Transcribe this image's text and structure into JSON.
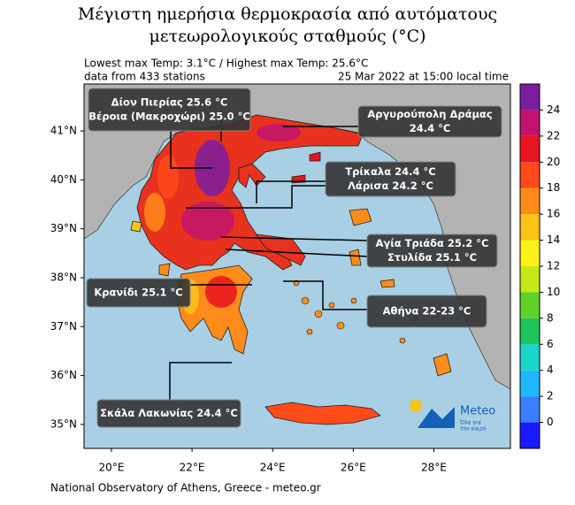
{
  "title": [
    "Μέγιστη ημερήσια θερμοκρασία από αυτόματους",
    "μετεωρολογικούς σταθμούς (°C)"
  ],
  "info": {
    "temps": "Lowest max Temp: 3.1°C / Highest max Temp: 25.6°C",
    "stations": "data from 433 stations",
    "time": "25 Mar 2022 at 15:00 local time"
  },
  "map": {
    "lonlim": [
      19.32,
      29.9
    ],
    "latlim": [
      34.51,
      41.96
    ],
    "lonticks": [
      {
        "value": 20,
        "label": "20°E"
      },
      {
        "value": 22,
        "label": "22°E"
      },
      {
        "value": 24,
        "label": "24°E"
      },
      {
        "value": 26,
        "label": "26°E"
      },
      {
        "value": 28,
        "label": "28°E"
      }
    ],
    "latticks": [
      {
        "value": 35,
        "label": "35°N"
      },
      {
        "value": 36,
        "label": "36°N"
      },
      {
        "value": 37,
        "label": "37°N"
      },
      {
        "value": 38,
        "label": "38°N"
      },
      {
        "value": 39,
        "label": "39°N"
      },
      {
        "value": 40,
        "label": "40°N"
      },
      {
        "value": 41,
        "label": "41°N"
      }
    ]
  },
  "colorbar": {
    "lim": [
      -2,
      26
    ],
    "levels": [
      -2,
      0,
      2,
      4,
      6,
      8,
      10,
      12,
      14,
      16,
      18,
      20,
      22,
      24,
      26
    ],
    "colors": [
      "#1a1aff",
      "#3a7fff",
      "#22b8ff",
      "#19d6c8",
      "#1fc45a",
      "#5fd22a",
      "#c4e81a",
      "#fff11a",
      "#ffc21a",
      "#ff8c1a",
      "#ff4a1a",
      "#e8141e",
      "#c2146e",
      "#7a1ea0"
    ],
    "ticks": [
      0,
      2,
      4,
      6,
      8,
      10,
      12,
      14,
      16,
      18,
      20,
      22,
      24
    ]
  },
  "annotations": [
    {
      "lines": [
        "Δίον Πιερίας 25.6 °C",
        "Βέροια (Μακροχώρι) 25.0 °C"
      ]
    },
    {
      "lines": [
        "Αργυρούπολη Δράμας",
        "24.4 °C"
      ]
    },
    {
      "lines": [
        "Τρίκαλα 24.4 °C",
        "Λάρισα 24.2 °C"
      ]
    },
    {
      "lines": [
        "Αγία Τριάδα 25.2 °C",
        "Στυλίδα  25.1 °C"
      ]
    },
    {
      "lines": [
        "Κρανίδι 25.1 °C"
      ]
    },
    {
      "lines": [
        "Αθήνα 22-23 °C"
      ]
    },
    {
      "lines": [
        "Σκάλα Λακωνίας 24.4 °C"
      ]
    }
  ],
  "logo": {
    "name": "Meteo",
    "slogan": [
      "Όλα για",
      "τον καιρό"
    ]
  },
  "footer": "National Observatory of Athens, Greece - meteo.gr"
}
